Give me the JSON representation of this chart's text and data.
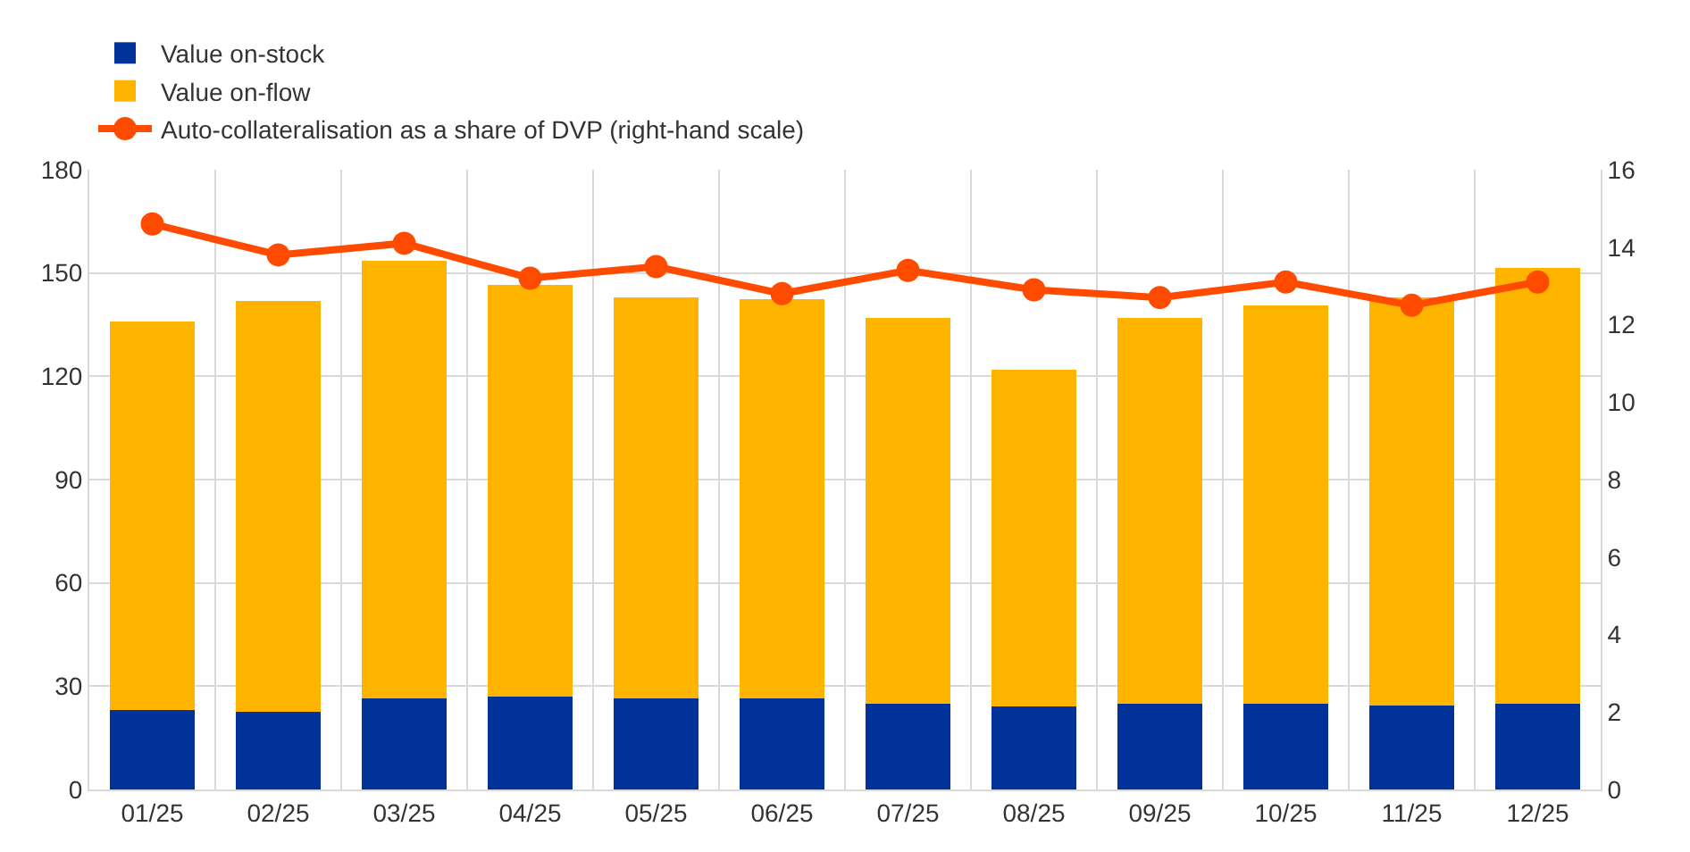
{
  "chart_data": {
    "type": "bar",
    "stacked": true,
    "categories": [
      "01/25",
      "02/25",
      "03/25",
      "04/25",
      "05/25",
      "06/25",
      "07/25",
      "08/25",
      "09/25",
      "10/25",
      "11/25",
      "12/25"
    ],
    "series": [
      {
        "name": "Value on-stock",
        "color": "#003299",
        "values": [
          23,
          22.5,
          26.5,
          27,
          26.5,
          26.5,
          25,
          24,
          25,
          25,
          24.5,
          25
        ]
      },
      {
        "name": "Value on-flow",
        "color": "#ffb400",
        "values": [
          113,
          119.5,
          127,
          119.5,
          116.5,
          116,
          112,
          98,
          112,
          115.5,
          118.5,
          126.5
        ]
      },
      {
        "name": "Auto-collateralisation as a share of DVP (right-hand scale)",
        "type": "line",
        "axis": "y2",
        "color": "#ff4b00",
        "marker": "circle",
        "values": [
          14.6,
          13.8,
          14.1,
          13.2,
          13.5,
          12.8,
          13.4,
          12.9,
          12.7,
          13.1,
          12.5,
          13.1
        ]
      }
    ],
    "ylim": [
      0,
      180
    ],
    "yticks": [
      0,
      30,
      60,
      90,
      120,
      150,
      180
    ],
    "y2lim": [
      0,
      16
    ],
    "y2ticks": [
      0,
      2,
      4,
      6,
      8,
      10,
      12,
      14,
      16
    ],
    "grid": true,
    "legend": "top left"
  }
}
